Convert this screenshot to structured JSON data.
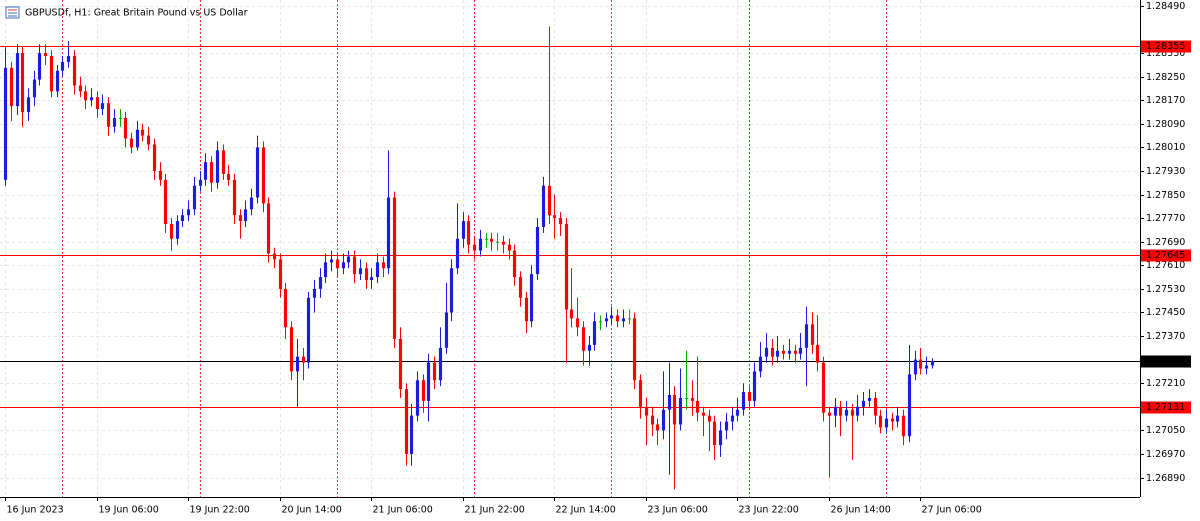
{
  "chart_data": {
    "type": "candlestick",
    "title": "GBPUSDf, H1:  Great Britain Pound vs US Dollar",
    "up_color": "#1c1ce0",
    "down_color": "#ff0000",
    "flat_color": "#00b000",
    "grid": true,
    "grid_color": "#e6e6e6",
    "separator_color": "#ff0000",
    "ylim": [
      1.26824,
      1.2851
    ],
    "xlim": [
      -0.9,
      198.4
    ],
    "yticks": [
      {
        "value": 1.2849,
        "label": "1.28490"
      },
      {
        "value": 1.2833,
        "label": "1.28330"
      },
      {
        "value": 1.2825,
        "label": "1.28250"
      },
      {
        "value": 1.2817,
        "label": "1.28170"
      },
      {
        "value": 1.2809,
        "label": "1.28090"
      },
      {
        "value": 1.2801,
        "label": "1.28010"
      },
      {
        "value": 1.2793,
        "label": "1.27930"
      },
      {
        "value": 1.2785,
        "label": "1.27850"
      },
      {
        "value": 1.2777,
        "label": "1.27770"
      },
      {
        "value": 1.2769,
        "label": "1.27690"
      },
      {
        "value": 1.2761,
        "label": "1.27610"
      },
      {
        "value": 1.2753,
        "label": "1.27530"
      },
      {
        "value": 1.2745,
        "label": "1.27450"
      },
      {
        "value": 1.2737,
        "label": "1.27370"
      },
      {
        "value": 1.2721,
        "label": "1.27210"
      },
      {
        "value": 1.2705,
        "label": "1.27050"
      },
      {
        "value": 1.2697,
        "label": "1.26970"
      },
      {
        "value": 1.2689,
        "label": "1.26890"
      }
    ],
    "xticks": [
      {
        "value": 0,
        "label": "16 Jun 2023"
      },
      {
        "value": 16,
        "label": "19 Jun 06:00"
      },
      {
        "value": 32,
        "label": "19 Jun 22:00"
      },
      {
        "value": 48,
        "label": "20 Jun 14:00"
      },
      {
        "value": 64,
        "label": "21 Jun 06:00"
      },
      {
        "value": 80,
        "label": "21 Jun 22:00"
      },
      {
        "value": 96,
        "label": "22 Jun 14:00"
      },
      {
        "value": 112,
        "label": "23 Jun 06:00"
      },
      {
        "value": 128,
        "label": "23 Jun 22:00"
      },
      {
        "value": 144,
        "label": "26 Jun 14:00"
      },
      {
        "value": 160,
        "label": "27 Jun 06:00"
      }
    ],
    "day_separators": [
      10,
      34,
      58,
      82,
      106,
      130,
      154
    ],
    "levels": [
      {
        "value": 1.28355,
        "color": "#ff0000"
      },
      {
        "value": 1.27645,
        "color": "#ff0000"
      },
      {
        "value": 1.27285,
        "color": "#000000"
      },
      {
        "value": 1.27131,
        "color": "#ff0000"
      }
    ],
    "candles": [
      [
        1.279,
        1.2835,
        1.2788,
        1.2828
      ],
      [
        1.2828,
        1.283,
        1.281,
        1.2815
      ],
      [
        1.2815,
        1.2836,
        1.2812,
        1.2833
      ],
      [
        1.2833,
        1.2835,
        1.2808,
        1.2813
      ],
      [
        1.2813,
        1.2821,
        1.281,
        1.2818
      ],
      [
        1.2818,
        1.2827,
        1.2815,
        1.2824
      ],
      [
        1.2824,
        1.2836,
        1.2822,
        1.2833
      ],
      [
        1.2833,
        1.2836,
        1.2829,
        1.2832
      ],
      [
        1.2832,
        1.2834,
        1.2818,
        1.282
      ],
      [
        1.282,
        1.2829,
        1.2818,
        1.2827
      ],
      [
        1.2827,
        1.2832,
        1.2825,
        1.283
      ],
      [
        1.283,
        1.2837,
        1.2828,
        1.2832
      ],
      [
        1.2832,
        1.2834,
        1.2819,
        1.2822
      ],
      [
        1.2822,
        1.2825,
        1.2818,
        1.282
      ],
      [
        1.282,
        1.2822,
        1.2814,
        1.2817
      ],
      [
        1.2817,
        1.2821,
        1.2815,
        1.2818
      ],
      [
        1.2818,
        1.282,
        1.2811,
        1.2814
      ],
      [
        1.2814,
        1.2819,
        1.2812,
        1.2816
      ],
      [
        1.2816,
        1.2818,
        1.2805,
        1.2808
      ],
      [
        1.2808,
        1.2814,
        1.2806,
        1.2811
      ],
      [
        1.2811,
        1.2814,
        1.2808,
        1.2811
      ],
      [
        1.2811,
        1.2813,
        1.2801,
        1.2804
      ],
      [
        1.2804,
        1.2806,
        1.2799,
        1.2801
      ],
      [
        1.2801,
        1.281,
        1.28,
        1.2807
      ],
      [
        1.2807,
        1.2809,
        1.2803,
        1.2805
      ],
      [
        1.2805,
        1.2808,
        1.28,
        1.2802
      ],
      [
        1.2802,
        1.2804,
        1.279,
        1.2793
      ],
      [
        1.2793,
        1.2796,
        1.2788,
        1.279
      ],
      [
        1.279,
        1.2792,
        1.2772,
        1.2775
      ],
      [
        1.2775,
        1.2777,
        1.2766,
        1.277
      ],
      [
        1.277,
        1.2778,
        1.2768,
        1.2776
      ],
      [
        1.2776,
        1.278,
        1.2774,
        1.2778
      ],
      [
        1.2778,
        1.2783,
        1.2776,
        1.278
      ],
      [
        1.278,
        1.2791,
        1.2778,
        1.2788
      ],
      [
        1.2788,
        1.2793,
        1.2786,
        1.279
      ],
      [
        1.279,
        1.2799,
        1.2788,
        1.2796
      ],
      [
        1.2796,
        1.2798,
        1.2786,
        1.2789
      ],
      [
        1.2789,
        1.2803,
        1.2787,
        1.28
      ],
      [
        1.28,
        1.2802,
        1.279,
        1.2792
      ],
      [
        1.2792,
        1.2795,
        1.2788,
        1.279
      ],
      [
        1.279,
        1.2792,
        1.2775,
        1.2778
      ],
      [
        1.2778,
        1.278,
        1.277,
        1.2776
      ],
      [
        1.2776,
        1.2783,
        1.2774,
        1.278
      ],
      [
        1.278,
        1.2787,
        1.2778,
        1.2784
      ],
      [
        1.2784,
        1.2805,
        1.2782,
        1.2801
      ],
      [
        1.2801,
        1.2803,
        1.2779,
        1.2782
      ],
      [
        1.2782,
        1.2784,
        1.2762,
        1.2765
      ],
      [
        1.2765,
        1.2767,
        1.276,
        1.2763
      ],
      [
        1.2763,
        1.2765,
        1.275,
        1.2753
      ],
      [
        1.2753,
        1.2755,
        1.2736,
        1.274
      ],
      [
        1.274,
        1.2742,
        1.2722,
        1.2725
      ],
      [
        1.2725,
        1.2736,
        1.2713,
        1.273
      ],
      [
        1.273,
        1.2733,
        1.2722,
        1.2728
      ],
      [
        1.2728,
        1.2752,
        1.2726,
        1.275
      ],
      [
        1.275,
        1.2756,
        1.2745,
        1.2753
      ],
      [
        1.2753,
        1.276,
        1.275,
        1.2757
      ],
      [
        1.2757,
        1.2765,
        1.2755,
        1.2762
      ],
      [
        1.2762,
        1.2766,
        1.2759,
        1.2763
      ],
      [
        1.2763,
        1.2765,
        1.2757,
        1.276
      ],
      [
        1.276,
        1.2765,
        1.2758,
        1.2762
      ],
      [
        1.2762,
        1.2766,
        1.276,
        1.2764
      ],
      [
        1.2764,
        1.2766,
        1.2755,
        1.2758
      ],
      [
        1.2758,
        1.2763,
        1.2756,
        1.276
      ],
      [
        1.276,
        1.2762,
        1.2753,
        1.2756
      ],
      [
        1.2756,
        1.276,
        1.2753,
        1.2757
      ],
      [
        1.2757,
        1.2765,
        1.2755,
        1.2762
      ],
      [
        1.2762,
        1.2764,
        1.2757,
        1.276
      ],
      [
        1.276,
        1.28,
        1.2758,
        1.2784
      ],
      [
        1.2784,
        1.2786,
        1.2733,
        1.2736
      ],
      [
        1.2736,
        1.274,
        1.2716,
        1.2719
      ],
      [
        1.2719,
        1.2721,
        1.2693,
        1.2697
      ],
      [
        1.2697,
        1.2714,
        1.2693,
        1.271
      ],
      [
        1.271,
        1.2725,
        1.2708,
        1.2722
      ],
      [
        1.2722,
        1.2724,
        1.2711,
        1.2715
      ],
      [
        1.2715,
        1.2731,
        1.2708,
        1.2728
      ],
      [
        1.2728,
        1.273,
        1.2719,
        1.2722
      ],
      [
        1.2722,
        1.274,
        1.272,
        1.2733
      ],
      [
        1.2733,
        1.2755,
        1.2731,
        1.2745
      ],
      [
        1.2745,
        1.2763,
        1.2742,
        1.276
      ],
      [
        1.276,
        1.2782,
        1.2758,
        1.277
      ],
      [
        1.277,
        1.2779,
        1.2767,
        1.2776
      ],
      [
        1.2776,
        1.2778,
        1.2765,
        1.2768
      ],
      [
        1.2768,
        1.2771,
        1.2763,
        1.2766
      ],
      [
        1.2766,
        1.2773,
        1.2764,
        1.277
      ],
      [
        1.277,
        1.2772,
        1.2767,
        1.277
      ],
      [
        1.277,
        1.2772,
        1.2766,
        1.2769
      ],
      [
        1.2769,
        1.2772,
        1.2766,
        1.2769
      ],
      [
        1.2769,
        1.2771,
        1.2765,
        1.2768
      ],
      [
        1.2768,
        1.277,
        1.2763,
        1.2766
      ],
      [
        1.2766,
        1.2768,
        1.2754,
        1.2757
      ],
      [
        1.2757,
        1.2759,
        1.2747,
        1.275
      ],
      [
        1.275,
        1.2752,
        1.2738,
        1.2742
      ],
      [
        1.2742,
        1.2761,
        1.274,
        1.2758
      ],
      [
        1.2758,
        1.2777,
        1.2756,
        1.2774
      ],
      [
        1.2774,
        1.2791,
        1.2772,
        1.2788
      ],
      [
        1.2788,
        1.2842,
        1.2775,
        1.2778
      ],
      [
        1.2778,
        1.2785,
        1.277,
        1.2777
      ],
      [
        1.2777,
        1.2779,
        1.2771,
        1.2775
      ],
      [
        1.2775,
        1.2777,
        1.2728,
        1.2746
      ],
      [
        1.2746,
        1.276,
        1.274,
        1.2743
      ],
      [
        1.2743,
        1.275,
        1.2737,
        1.274
      ],
      [
        1.274,
        1.2742,
        1.2727,
        1.2732
      ],
      [
        1.2732,
        1.2737,
        1.2727,
        1.2734
      ],
      [
        1.2734,
        1.2745,
        1.2732,
        1.2742
      ],
      [
        1.2742,
        1.2744,
        1.2739,
        1.2742
      ],
      [
        1.2742,
        1.2745,
        1.274,
        1.2743
      ],
      [
        1.2743,
        1.2747,
        1.2741,
        1.2744
      ],
      [
        1.2744,
        1.2746,
        1.274,
        1.2742
      ],
      [
        1.2742,
        1.2746,
        1.274,
        1.2743
      ],
      [
        1.2743,
        1.2746,
        1.2741,
        1.2743
      ],
      [
        1.2743,
        1.2745,
        1.2719,
        1.2722
      ],
      [
        1.2722,
        1.2724,
        1.2709,
        1.2713
      ],
      [
        1.2713,
        1.2716,
        1.27,
        1.271
      ],
      [
        1.271,
        1.2713,
        1.2703,
        1.2707
      ],
      [
        1.2707,
        1.2709,
        1.27,
        1.2705
      ],
      [
        1.2705,
        1.2725,
        1.2702,
        1.2712
      ],
      [
        1.2712,
        1.2728,
        1.269,
        1.2717
      ],
      [
        1.2717,
        1.272,
        1.2685,
        1.2707
      ],
      [
        1.2707,
        1.2726,
        1.2705,
        1.2716
      ],
      [
        1.2716,
        1.2732,
        1.2712,
        1.2716
      ],
      [
        1.2716,
        1.2722,
        1.271,
        1.2715
      ],
      [
        1.2715,
        1.273,
        1.2708,
        1.2711
      ],
      [
        1.2711,
        1.2713,
        1.2703,
        1.271
      ],
      [
        1.271,
        1.2712,
        1.2698,
        1.2708
      ],
      [
        1.2708,
        1.271,
        1.2695,
        1.27
      ],
      [
        1.27,
        1.2708,
        1.2696,
        1.2705
      ],
      [
        1.2705,
        1.2711,
        1.2702,
        1.2708
      ],
      [
        1.2708,
        1.2713,
        1.2705,
        1.271
      ],
      [
        1.271,
        1.2716,
        1.2708,
        1.2712
      ],
      [
        1.2712,
        1.2721,
        1.271,
        1.2718
      ],
      [
        1.2718,
        1.272,
        1.2712,
        1.2715
      ],
      [
        1.2715,
        1.2728,
        1.2713,
        1.2725
      ],
      [
        1.2725,
        1.2735,
        1.2723,
        1.273
      ],
      [
        1.273,
        1.2738,
        1.2728,
        1.2733
      ],
      [
        1.2733,
        1.2736,
        1.2727,
        1.273
      ],
      [
        1.273,
        1.2737,
        1.2728,
        1.2732
      ],
      [
        1.2732,
        1.2734,
        1.2729,
        1.2731
      ],
      [
        1.2731,
        1.2736,
        1.2729,
        1.2732
      ],
      [
        1.2732,
        1.2734,
        1.2728,
        1.2731
      ],
      [
        1.2731,
        1.2738,
        1.2729,
        1.2733
      ],
      [
        1.2733,
        1.2747,
        1.272,
        1.2741
      ],
      [
        1.2741,
        1.2745,
        1.2731,
        1.2734
      ],
      [
        1.2734,
        1.2744,
        1.2725,
        1.2728
      ],
      [
        1.2728,
        1.273,
        1.2708,
        1.2711
      ],
      [
        1.2711,
        1.2713,
        1.2689,
        1.271
      ],
      [
        1.271,
        1.2716,
        1.2706,
        1.2713
      ],
      [
        1.2713,
        1.2715,
        1.2703,
        1.271
      ],
      [
        1.271,
        1.2715,
        1.2708,
        1.2712
      ],
      [
        1.2712,
        1.2714,
        1.2695,
        1.271
      ],
      [
        1.271,
        1.2717,
        1.2708,
        1.2713
      ],
      [
        1.2713,
        1.2718,
        1.271,
        1.2715
      ],
      [
        1.2715,
        1.2719,
        1.2713,
        1.2716
      ],
      [
        1.2716,
        1.2718,
        1.2707,
        1.271
      ],
      [
        1.271,
        1.2712,
        1.2704,
        1.2706
      ],
      [
        1.2706,
        1.2712,
        1.2704,
        1.2709
      ],
      [
        1.2709,
        1.2711,
        1.2705,
        1.2708
      ],
      [
        1.2708,
        1.2713,
        1.2706,
        1.271
      ],
      [
        1.271,
        1.2712,
        1.27,
        1.2703
      ],
      [
        1.2703,
        1.2734,
        1.2701,
        1.2724
      ],
      [
        1.2724,
        1.2732,
        1.2722,
        1.2729
      ],
      [
        1.2729,
        1.2733,
        1.2724,
        1.2726
      ],
      [
        1.2726,
        1.273,
        1.2724,
        1.2727
      ],
      [
        1.2727,
        1.27295,
        1.2726,
        1.27285
      ]
    ]
  }
}
